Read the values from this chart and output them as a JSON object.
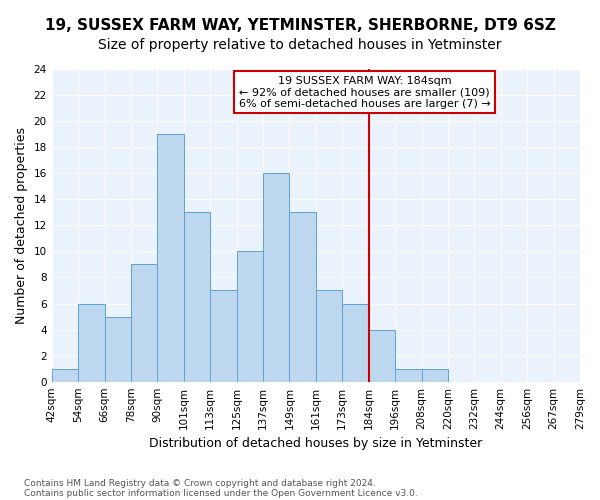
{
  "title": "19, SUSSEX FARM WAY, YETMINSTER, SHERBORNE, DT9 6SZ",
  "subtitle": "Size of property relative to detached houses in Yetminster",
  "xlabel": "Distribution of detached houses by size in Yetminster",
  "ylabel": "Number of detached properties",
  "footnote1": "Contains HM Land Registry data © Crown copyright and database right 2024.",
  "footnote2": "Contains public sector information licensed under the Open Government Licence v3.0.",
  "bin_labels": [
    "42sqm",
    "54sqm",
    "66sqm",
    "78sqm",
    "90sqm",
    "101sqm",
    "113sqm",
    "125sqm",
    "137sqm",
    "149sqm",
    "161sqm",
    "173sqm",
    "184sqm",
    "196sqm",
    "208sqm",
    "220sqm",
    "232sqm",
    "244sqm",
    "256sqm",
    "267sqm",
    "279sqm"
  ],
  "counts": [
    1,
    6,
    5,
    9,
    19,
    13,
    7,
    10,
    16,
    13,
    7,
    6,
    4,
    1,
    1,
    0,
    0,
    0,
    0,
    0
  ],
  "bar_color": "#BDD7EE",
  "bar_edge_color": "#5BA3D0",
  "vline_x": 12,
  "vline_color": "#CC0000",
  "annotation_text": "19 SUSSEX FARM WAY: 184sqm\n← 92% of detached houses are smaller (109)\n6% of semi-detached houses are larger (7) →",
  "annotation_box_edgecolor": "#CC0000",
  "ylim": [
    0,
    24
  ],
  "yticks": [
    0,
    2,
    4,
    6,
    8,
    10,
    12,
    14,
    16,
    18,
    20,
    22,
    24
  ],
  "bg_color": "#EAF2FB",
  "grid_color": "#FFFFFF",
  "title_fontsize": 11,
  "subtitle_fontsize": 10,
  "xlabel_fontsize": 9,
  "ylabel_fontsize": 9,
  "tick_fontsize": 7.5,
  "annot_fontsize": 8
}
